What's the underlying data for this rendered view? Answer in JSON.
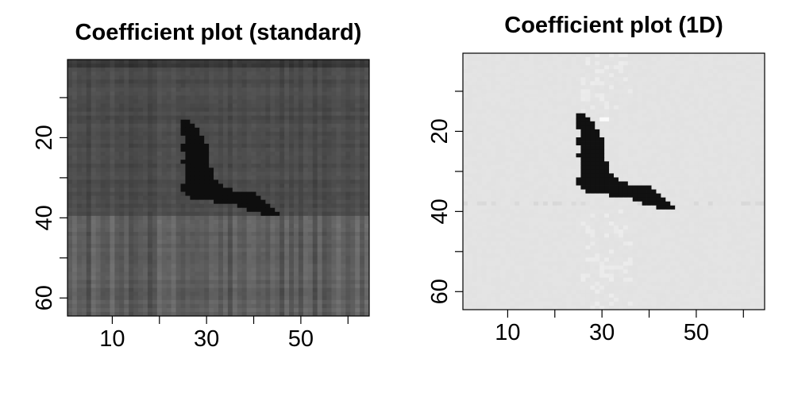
{
  "chart_data": [
    {
      "type": "heatmap",
      "title": "Coefficient plot (standard)",
      "xlabel": "",
      "ylabel": "",
      "grid_size": 64,
      "x_range": [
        1,
        64
      ],
      "y_range": [
        1,
        64
      ],
      "y_reversed": true,
      "x_ticks": [
        10,
        20,
        30,
        40,
        50,
        60
      ],
      "x_tick_labels": [
        "10",
        "",
        "30",
        "",
        "50",
        ""
      ],
      "y_ticks": [
        10,
        20,
        30,
        40,
        50,
        60
      ],
      "y_tick_labels": [
        "",
        "20",
        "",
        "40",
        "",
        "60"
      ],
      "colormap": "grayscale",
      "background_upper_rows_1_39": "#4a4a4a",
      "background_lower_rows_40_64": "#5c5c5c",
      "signal_color": "#0e0e0e",
      "signal_region": "dark bird-shaped region spanning columns ~25-44, rows ~16-39"
    },
    {
      "type": "heatmap",
      "title": "Coefficient plot (1D)",
      "xlabel": "",
      "ylabel": "",
      "grid_size": 64,
      "x_range": [
        1,
        64
      ],
      "y_range": [
        1,
        64
      ],
      "y_reversed": true,
      "x_ticks": [
        10,
        20,
        30,
        40,
        50,
        60
      ],
      "x_tick_labels": [
        "10",
        "",
        "30",
        "",
        "50",
        ""
      ],
      "y_ticks": [
        10,
        20,
        30,
        40,
        50,
        60
      ],
      "y_tick_labels": [
        "",
        "20",
        "",
        "40",
        "",
        "60"
      ],
      "colormap": "grayscale",
      "background": "#e3e3e3",
      "signal_color": "#111111",
      "signal_region": "dark bird-shaped region spanning columns ~25-44, rows ~16-39"
    }
  ]
}
